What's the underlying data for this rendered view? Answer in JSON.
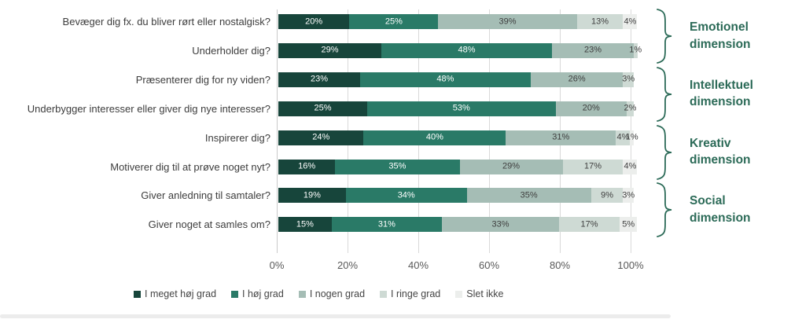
{
  "chart_data": {
    "type": "bar",
    "stacked": true,
    "orientation": "horizontal",
    "categories": [
      "Bevæger dig fx. du bliver rørt eller nostalgisk?",
      "Underholder dig?",
      "Præsenterer dig for ny viden?",
      "Underbygger interesser eller giver dig nye interesser?",
      "Inspirerer dig?",
      "Motiverer dig til at prøve noget nyt?",
      "Giver anledning til samtaler?",
      "Giver noget at samles om?"
    ],
    "series": [
      {
        "name": "I meget høj grad",
        "color": "#17453b",
        "values": [
          20,
          29,
          23,
          25,
          24,
          16,
          19,
          15
        ],
        "labels": [
          "20%",
          "29%",
          "23%",
          "25%",
          "24%",
          "16%",
          "19%",
          "15%"
        ]
      },
      {
        "name": "I høj grad",
        "color": "#2a7a67",
        "values": [
          25,
          48,
          48,
          53,
          40,
          35,
          34,
          31
        ],
        "labels": [
          "25%",
          "48%",
          "48%",
          "53%",
          "40%",
          "35%",
          "34%",
          "31%"
        ]
      },
      {
        "name": "I nogen grad",
        "color": "#a5bdb5",
        "values": [
          39,
          23,
          26,
          20,
          31,
          29,
          35,
          33
        ],
        "labels": [
          "39%",
          "23%",
          "26%",
          "20%",
          "31%",
          "29%",
          "35%",
          "33%"
        ]
      },
      {
        "name": "I ringe grad",
        "color": "#cedad4",
        "values": [
          13,
          1,
          3,
          2,
          4,
          17,
          9,
          17
        ],
        "labels": [
          "13%",
          "1%",
          "3%",
          "2%",
          "4%",
          "17%",
          "9%",
          "17%"
        ]
      },
      {
        "name": "Slet ikke",
        "color": "#eceeec",
        "values": [
          4,
          0,
          0,
          0,
          1,
          4,
          3,
          5
        ],
        "labels": [
          "4%",
          "",
          "",
          "",
          "1%",
          "4%",
          "3%",
          "5%"
        ]
      }
    ],
    "x_axis": {
      "range": [
        0,
        100
      ],
      "ticks": [
        "0%",
        "20%",
        "40%",
        "60%",
        "80%",
        "100%"
      ],
      "grid": true
    },
    "legend_position": "bottom",
    "groups": [
      {
        "label": "Emotionel\ndimension",
        "rows": [
          0,
          1
        ]
      },
      {
        "label": "Intellektuel\ndimension",
        "rows": [
          2,
          3
        ]
      },
      {
        "label": "Kreativ\ndimension",
        "rows": [
          4,
          5
        ]
      },
      {
        "label": "Social\ndimension",
        "rows": [
          6,
          7
        ]
      }
    ],
    "accent_color": "#2b6a57"
  }
}
